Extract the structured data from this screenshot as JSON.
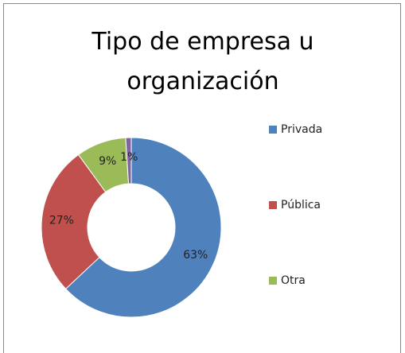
{
  "chart_data": {
    "type": "donut",
    "title": "Tipo de empresa u organización",
    "categories": [
      "Privada",
      "Pública",
      "Otra",
      null
    ],
    "values": [
      63,
      27,
      9,
      1
    ],
    "value_labels": [
      "63%",
      "27%",
      "9%",
      "1%"
    ],
    "colors": [
      "#4f81bd",
      "#c0504d",
      "#9bbb59",
      "#8064a2"
    ],
    "legend": "right"
  }
}
